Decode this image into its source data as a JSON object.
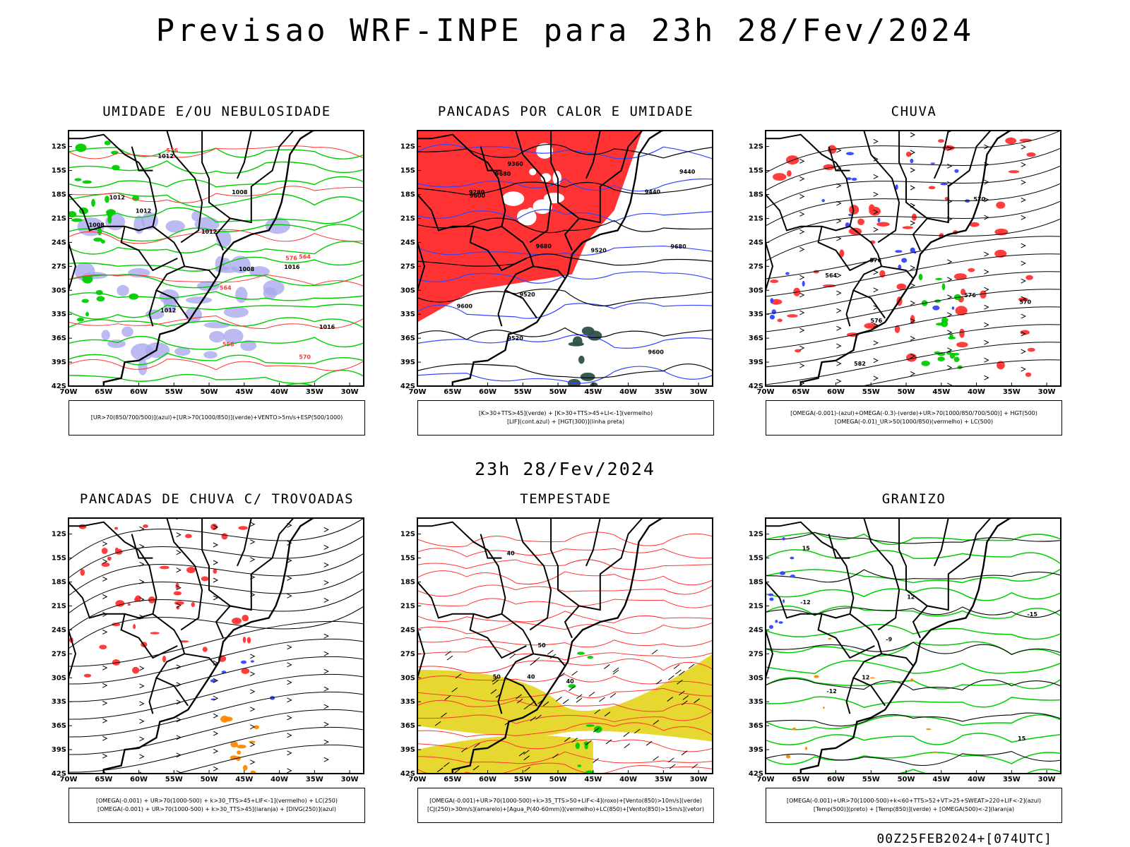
{
  "main_title": "Previsao WRF-INPE  para 23h 28/Fev/2024",
  "mid_title": "23h 28/Fev/2024",
  "footer": "00Z25FEB2024+[074UTC]",
  "axes": {
    "lat_labels": [
      "12S",
      "15S",
      "18S",
      "21S",
      "24S",
      "27S",
      "30S",
      "33S",
      "36S",
      "39S",
      "42S"
    ],
    "lon_labels": [
      "70W",
      "65W",
      "60W",
      "55W",
      "50W",
      "45W",
      "40W",
      "35W",
      "30W"
    ]
  },
  "colors": {
    "green": "#00cc00",
    "red": "#ff3333",
    "blue": "#3344ff",
    "lavender": "#aaaaee",
    "darkteal": "#2f5048",
    "yellow": "#e6d830",
    "orange": "#ff8800"
  },
  "panels": [
    {
      "title": "UMIDADE E/OU NEBULOSIDADE",
      "legend": [
        "[UR>70(850/700/500)](azul)+[UR>70(1000/850)](verde)+VENTO>5m/s+ESP(500/1000)"
      ],
      "contour_labels": [
        "1012",
        "1012",
        "1012",
        "1012",
        "1012",
        "1008",
        "1008",
        "1008",
        "1016",
        "1016",
        "576",
        "576",
        "570",
        "564",
        "564",
        "558"
      ]
    },
    {
      "title": "PANCADAS POR CALOR E UMIDADE",
      "legend": [
        "[K>30+TTS>45](verde) + [K>30+TTS>45+LI<-1](vermelho)",
        "[LIF](cont.azul) + [HGT(300)](linha preta)"
      ],
      "contour_labels": [
        "9680",
        "9680",
        "9680",
        "9600",
        "9600",
        "9600",
        "9520",
        "9520",
        "9520",
        "9440",
        "9440",
        "9360",
        "9280"
      ]
    },
    {
      "title": "CHUVA",
      "legend": [
        "[OMEGA(-0.001)-(azul)+OMEGA(-0.3)-(verde)+UR>70(1000/850/700/500)] + HGT(500)",
        "[OMEGA(-0.01)_UR>50(1000/850)(vermelho) + LC(500)"
      ],
      "contour_labels": [
        "582",
        "576",
        "576",
        "576",
        "570",
        "570",
        "564"
      ]
    },
    {
      "title": "PANCADAS DE CHUVA C/ TROVOADAS",
      "legend": [
        "[OMEGA(-0.001) + UR>70(1000-500) + k>30_TTS>45+LIF<-1](vermelho) + LC(250)",
        "[OMEGA(-0.001) + UR>70(1000-500) + k>30_TTS>45](laranja) + [DIVG(250)](azul)"
      ],
      "contour_labels": []
    },
    {
      "title": "TEMPESTADE",
      "legend": [
        "[OMEGA(-0.001)+UR>70(1000-500)+k>35_TTS>50+LIF<-4](roxo)+[Vento(850)>10m/s](verde)",
        "[CJ(250)>30m/s](amarelo)+[Agua_P(40-60mm)](vermelho)+LC(850)+[Vento(850)>15m/s](vetor)"
      ],
      "contour_labels": [
        "40",
        "40",
        "50",
        "50",
        "40"
      ]
    },
    {
      "title": "GRANIZO",
      "legend": [
        "[OMEGA(-0.001)+UR>70(1000-500)+k<60+TTS>52+VT>25+SWEAT>220+LIF<-2](azul)",
        "[Temp(500)](preto) + [Temp(850)](verde) + [OMEGA(500)<-2](laranja)"
      ],
      "contour_labels": [
        "-9",
        "-12",
        "-12",
        "-15",
        "12",
        "12",
        "15",
        "15"
      ]
    }
  ]
}
